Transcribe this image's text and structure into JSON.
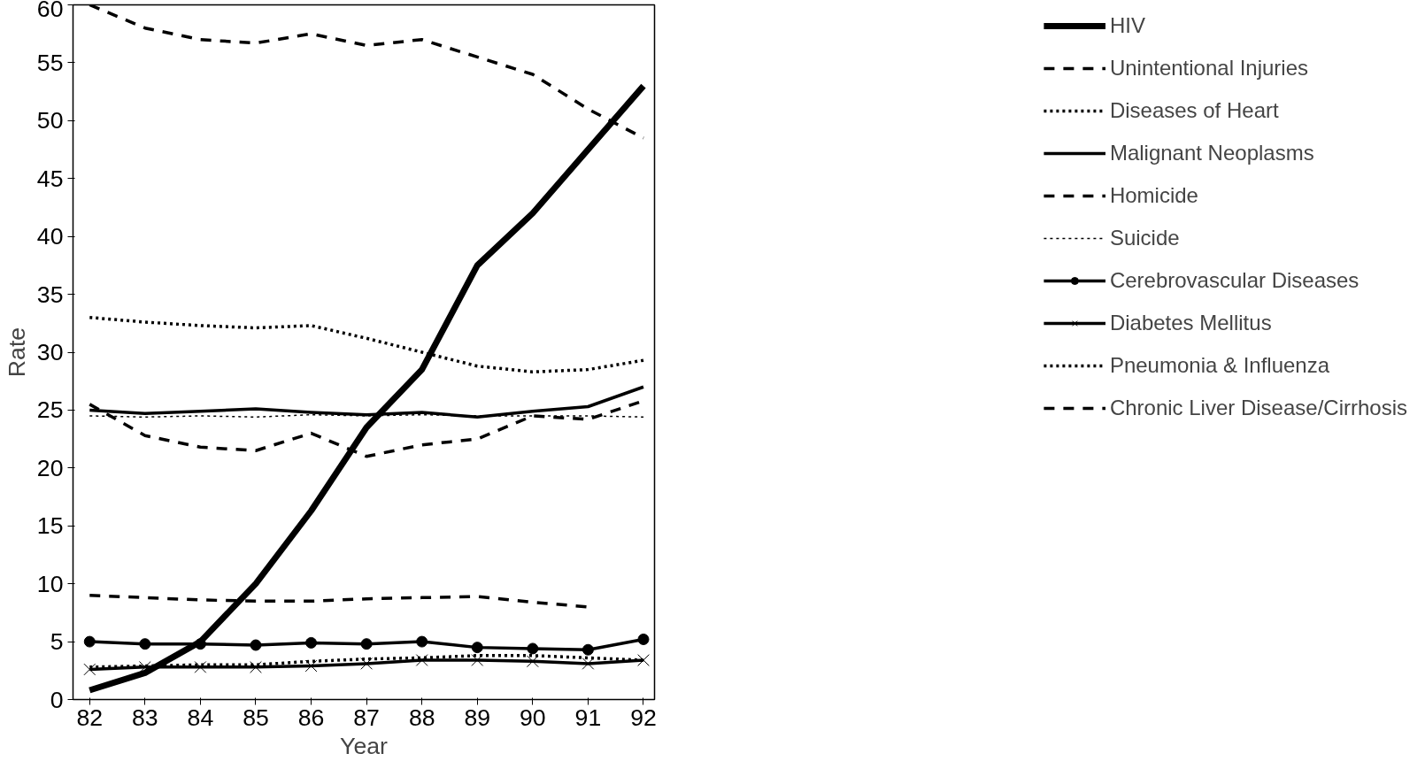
{
  "chart_data": {
    "type": "line",
    "xlabel": "Year",
    "ylabel": "Rate",
    "x": [
      82,
      83,
      84,
      85,
      86,
      87,
      88,
      89,
      90,
      91,
      92
    ],
    "xlim": [
      81.7,
      92.2
    ],
    "xticks": [
      82,
      83,
      84,
      85,
      86,
      87,
      88,
      89,
      90,
      91,
      92
    ],
    "ylim": [
      0,
      60
    ],
    "yticks": [
      0,
      5,
      10,
      15,
      20,
      25,
      30,
      35,
      40,
      45,
      50,
      55,
      60
    ],
    "grid": false,
    "legend": "right",
    "series": [
      {
        "name": "HIV",
        "color": "#000000",
        "line_style": "solid",
        "values": [
          0.8,
          2.3,
          5,
          10,
          16.3,
          23.5,
          28.5,
          37.5,
          42,
          47.5,
          53
        ]
      },
      {
        "name": "Unintentional Injuries",
        "color": "#000000",
        "line_style": "dashed",
        "values": [
          60,
          58,
          57,
          56.7,
          57.5,
          56.5,
          57,
          55.5,
          54,
          51,
          48.5
        ]
      },
      {
        "name": "Diseases of Heart",
        "color": "#000000",
        "line_style": "dotted",
        "values": [
          33,
          32.6,
          32.3,
          32.1,
          32.3,
          31.2,
          30,
          28.8,
          28.3,
          28.5,
          29.3
        ]
      },
      {
        "name": "Malignant Neoplasms",
        "color": "#000000",
        "line_style": "solid",
        "values": [
          25,
          24.7,
          24.9,
          25.1,
          24.8,
          24.6,
          24.8,
          24.4,
          24.9,
          25.3,
          27
        ]
      },
      {
        "name": "Homicide",
        "color": "#000000",
        "line_style": "dashed",
        "values": [
          25.5,
          22.8,
          21.8,
          21.5,
          23,
          21,
          22,
          22.5,
          24.5,
          24.2,
          25.8
        ]
      },
      {
        "name": "Suicide",
        "color": "#000000",
        "line_style": "dotted",
        "values": [
          24.5,
          24.4,
          24.5,
          24.4,
          24.6,
          24.5,
          24.6,
          24.5,
          24.5,
          24.5,
          24.4
        ]
      },
      {
        "name": "Cerebrovascular Diseases",
        "color": "#000000",
        "line_style": "solid",
        "marker": "circle",
        "values": [
          5,
          4.8,
          4.8,
          4.7,
          4.9,
          4.8,
          5,
          4.5,
          4.4,
          4.3,
          5.2
        ]
      },
      {
        "name": "Diabetes Mellitus",
        "color": "#000000",
        "line_style": "solid",
        "marker": "cross",
        "values": [
          2.6,
          2.8,
          2.8,
          2.8,
          2.9,
          3.1,
          3.4,
          3.4,
          3.3,
          3.1,
          3.4
        ]
      },
      {
        "name": "Pneumonia & Influenza",
        "color": "#000000",
        "line_style": "dotted",
        "values": [
          2.8,
          2.9,
          3,
          3,
          3.3,
          3.5,
          3.6,
          3.8,
          3.8,
          3.6,
          3.4
        ]
      },
      {
        "name": "Chronic Liver Disease/Cirrhosis",
        "color": "#000000",
        "line_style": "dashed",
        "values": [
          9,
          8.8,
          8.6,
          8.5,
          8.5,
          8.7,
          8.8,
          8.9,
          8.4,
          8.0,
          null
        ]
      }
    ]
  }
}
